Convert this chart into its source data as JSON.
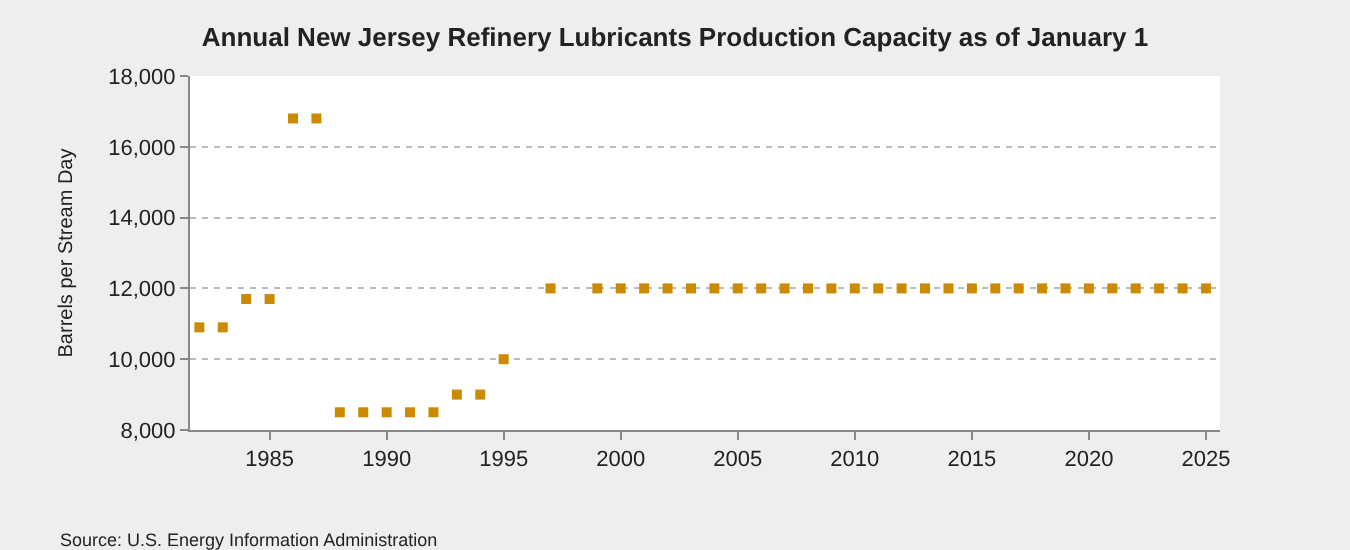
{
  "chart_data": {
    "type": "scatter",
    "title": "Annual New Jersey Refinery Lubricants Production Capacity as of January 1",
    "ylabel": "Barrels per Stream Day",
    "x": [
      1982,
      1983,
      1984,
      1985,
      1986,
      1987,
      1988,
      1989,
      1990,
      1991,
      1992,
      1993,
      1994,
      1995,
      1996,
      1997,
      1998,
      1999,
      2000,
      2001,
      2002,
      2003,
      2004,
      2005,
      2006,
      2007,
      2008,
      2009,
      2010,
      2011,
      2012,
      2013,
      2014,
      2015,
      2016,
      2017,
      2018,
      2019,
      2020,
      2021,
      2022,
      2023,
      2024,
      2025
    ],
    "series": [
      {
        "color": "#cc8a00",
        "values": [
          10900,
          10900,
          11700,
          11700,
          16800,
          16800,
          8500,
          8500,
          8500,
          8500,
          8500,
          9000,
          9000,
          10000,
          null,
          12000,
          null,
          12000,
          12000,
          12000,
          12000,
          12000,
          12000,
          12000,
          12000,
          12000,
          12000,
          12000,
          12000,
          12000,
          12000,
          12000,
          12000,
          12000,
          12000,
          12000,
          12000,
          12000,
          12000,
          12000,
          12000,
          12000,
          12000,
          12000
        ]
      }
    ],
    "xlim": [
      1981.6,
      2025.6
    ],
    "xticks": [
      1985,
      1990,
      1995,
      2000,
      2005,
      2010,
      2015,
      2020,
      2025
    ],
    "ylim": [
      8000,
      18000
    ],
    "yticks": [
      {
        "value": 8000,
        "label": "8,000"
      },
      {
        "value": 10000,
        "label": "10,000"
      },
      {
        "value": 12000,
        "label": "12,000"
      },
      {
        "value": 14000,
        "label": "14,000"
      },
      {
        "value": 16000,
        "label": "16,000"
      },
      {
        "value": 18000,
        "label": "18,000"
      }
    ],
    "grid": "y",
    "marker": "square",
    "legend": false,
    "annotations": [
      "Source: U.S. Energy Information Administration"
    ]
  }
}
